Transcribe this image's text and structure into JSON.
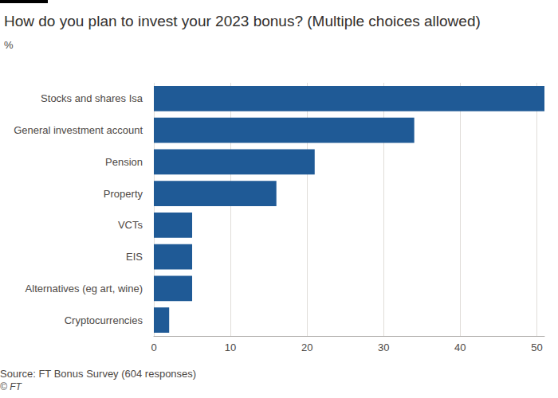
{
  "chart_data": {
    "type": "bar",
    "orientation": "horizontal",
    "title": "How do you plan to invest your 2023 bonus? (Multiple choices allowed)",
    "subtitle": "%",
    "categories": [
      "Stocks and shares Isa",
      "General investment account",
      "Pension",
      "Property",
      "VCTs",
      "EIS",
      "Alternatives (eg art, wine)",
      "Cryptocurrencies"
    ],
    "values": [
      51,
      34,
      21,
      16,
      5,
      5,
      5,
      2
    ],
    "color": "#1f5a96",
    "xlim": [
      0,
      51
    ],
    "xticks": [
      0,
      10,
      20,
      30,
      40,
      50
    ],
    "grid": true,
    "annotations": [
      "Source: FT Bonus Survey (604 responses)",
      "© FT"
    ]
  }
}
